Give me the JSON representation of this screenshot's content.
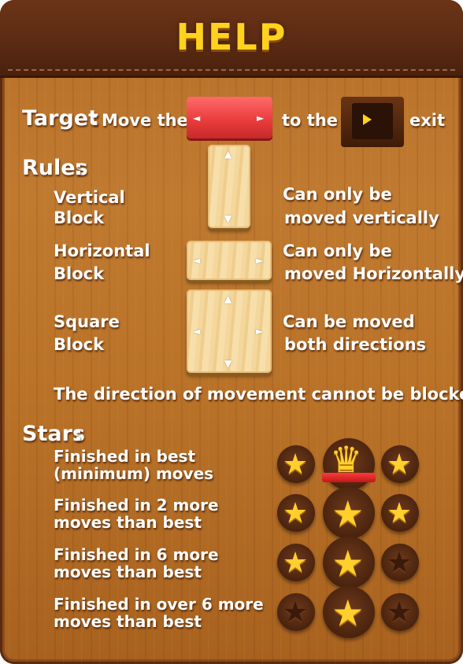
{
  "header": {
    "title": "HELP"
  },
  "target": {
    "label": "Target",
    "colon": ":",
    "move_the": "Move the",
    "to_the": "to the",
    "exit": "exit",
    "block_arrow_left": "◄",
    "block_arrow_right": "►"
  },
  "rules": {
    "label": "Rules",
    "colon": ":",
    "vertical": {
      "name_line1": "Vertical",
      "name_line2": "Block",
      "desc_line1": "Can only be",
      "desc_line2": "moved vertically"
    },
    "horizontal": {
      "name_line1": "Horizontal",
      "name_line2": "Block",
      "desc_line1": "Can only be",
      "desc_line2": "moved Horizontally"
    },
    "square": {
      "name_line1": "Square",
      "name_line2": "Block",
      "desc_line1": "Can be moved",
      "desc_line2": "both directions"
    },
    "note": "The direction of movement cannot be blocked",
    "arrow_up": "▲",
    "arrow_down": "▼",
    "arrow_left": "◄",
    "arrow_right": "►"
  },
  "stars": {
    "label": "Stars",
    "colon": ":",
    "rows": [
      {
        "line1": "Finished in best",
        "line2": "(minimum) moves",
        "stars": 3,
        "crown": true
      },
      {
        "line1": "Finished in 2 more",
        "line2": "moves than best",
        "stars": 3,
        "crown": false
      },
      {
        "line1": "Finished in 6 more",
        "line2": "moves than best",
        "stars": 2,
        "crown": false
      },
      {
        "line1": "Finished in over 6 more",
        "line2": "moves than best",
        "stars": 1,
        "crown": false
      }
    ],
    "star_glyph": "★",
    "crown_glyph": "♛"
  },
  "colors": {
    "accent_title": "#ffd21e",
    "red_block": "#e83a3a",
    "wood": "#f2d496",
    "panel": "#b97228",
    "star": "#ffcf2e"
  }
}
